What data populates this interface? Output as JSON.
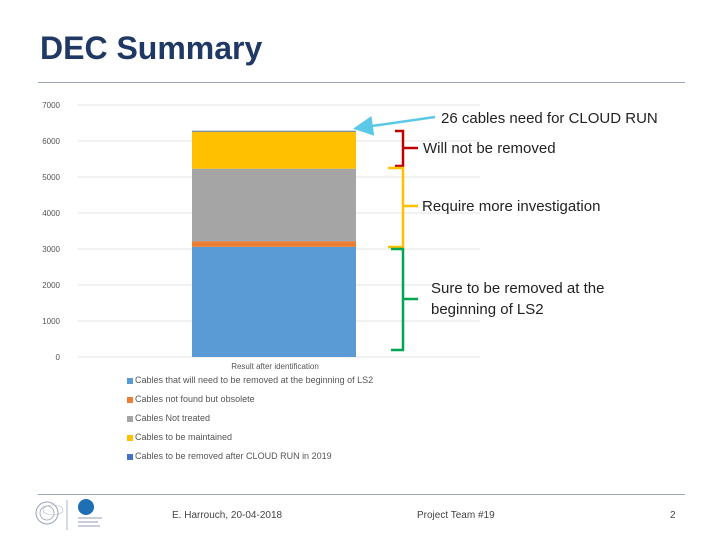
{
  "page": {
    "title": "DEC Summary"
  },
  "chart_data": {
    "type": "bar",
    "stacked": true,
    "categories": [
      "Result after identification"
    ],
    "ylim": [
      0,
      7000
    ],
    "yticks": [
      0,
      1000,
      2000,
      3000,
      4000,
      5000,
      6000,
      7000
    ],
    "ytick_labels": [
      "0",
      "1000",
      "2000",
      "3000",
      "4000",
      "5000",
      "6000",
      "7000"
    ],
    "xlabel": "Result after identification",
    "ylabel": "",
    "grid": true,
    "legend_position": "bottom",
    "series": [
      {
        "name": "Cables that will need to be removed at the beginning of LS2",
        "values": [
          3060
        ],
        "color": "#5b9bd5"
      },
      {
        "name": "Cables not found but obsolete",
        "values": [
          150
        ],
        "color": "#ed7d31"
      },
      {
        "name": "Cables Not treated",
        "values": [
          2020
        ],
        "color": "#a5a5a5"
      },
      {
        "name": "Cables to be maintained",
        "values": [
          1030
        ],
        "color": "#ffc000"
      },
      {
        "name": "Cables to be removed after CLOUD RUN in 2019",
        "values": [
          26
        ],
        "color": "#4472c4"
      }
    ]
  },
  "annotations": {
    "cloud_run": "26 cables need for CLOUD RUN",
    "not_removed": "Will not be removed",
    "investigation": "Require more investigation",
    "removed_line1": "Sure to be removed at the",
    "removed_line2": "beginning of LS2",
    "colors": {
      "arrow": "#5bc8e6",
      "bracket_red": "#c00000",
      "bracket_yellow": "#ffc000",
      "bracket_green": "#00a651"
    }
  },
  "footer": {
    "author_date": "E. Harrouch, 20-04-2018",
    "team": "Project Team #19",
    "page_number": "2"
  }
}
